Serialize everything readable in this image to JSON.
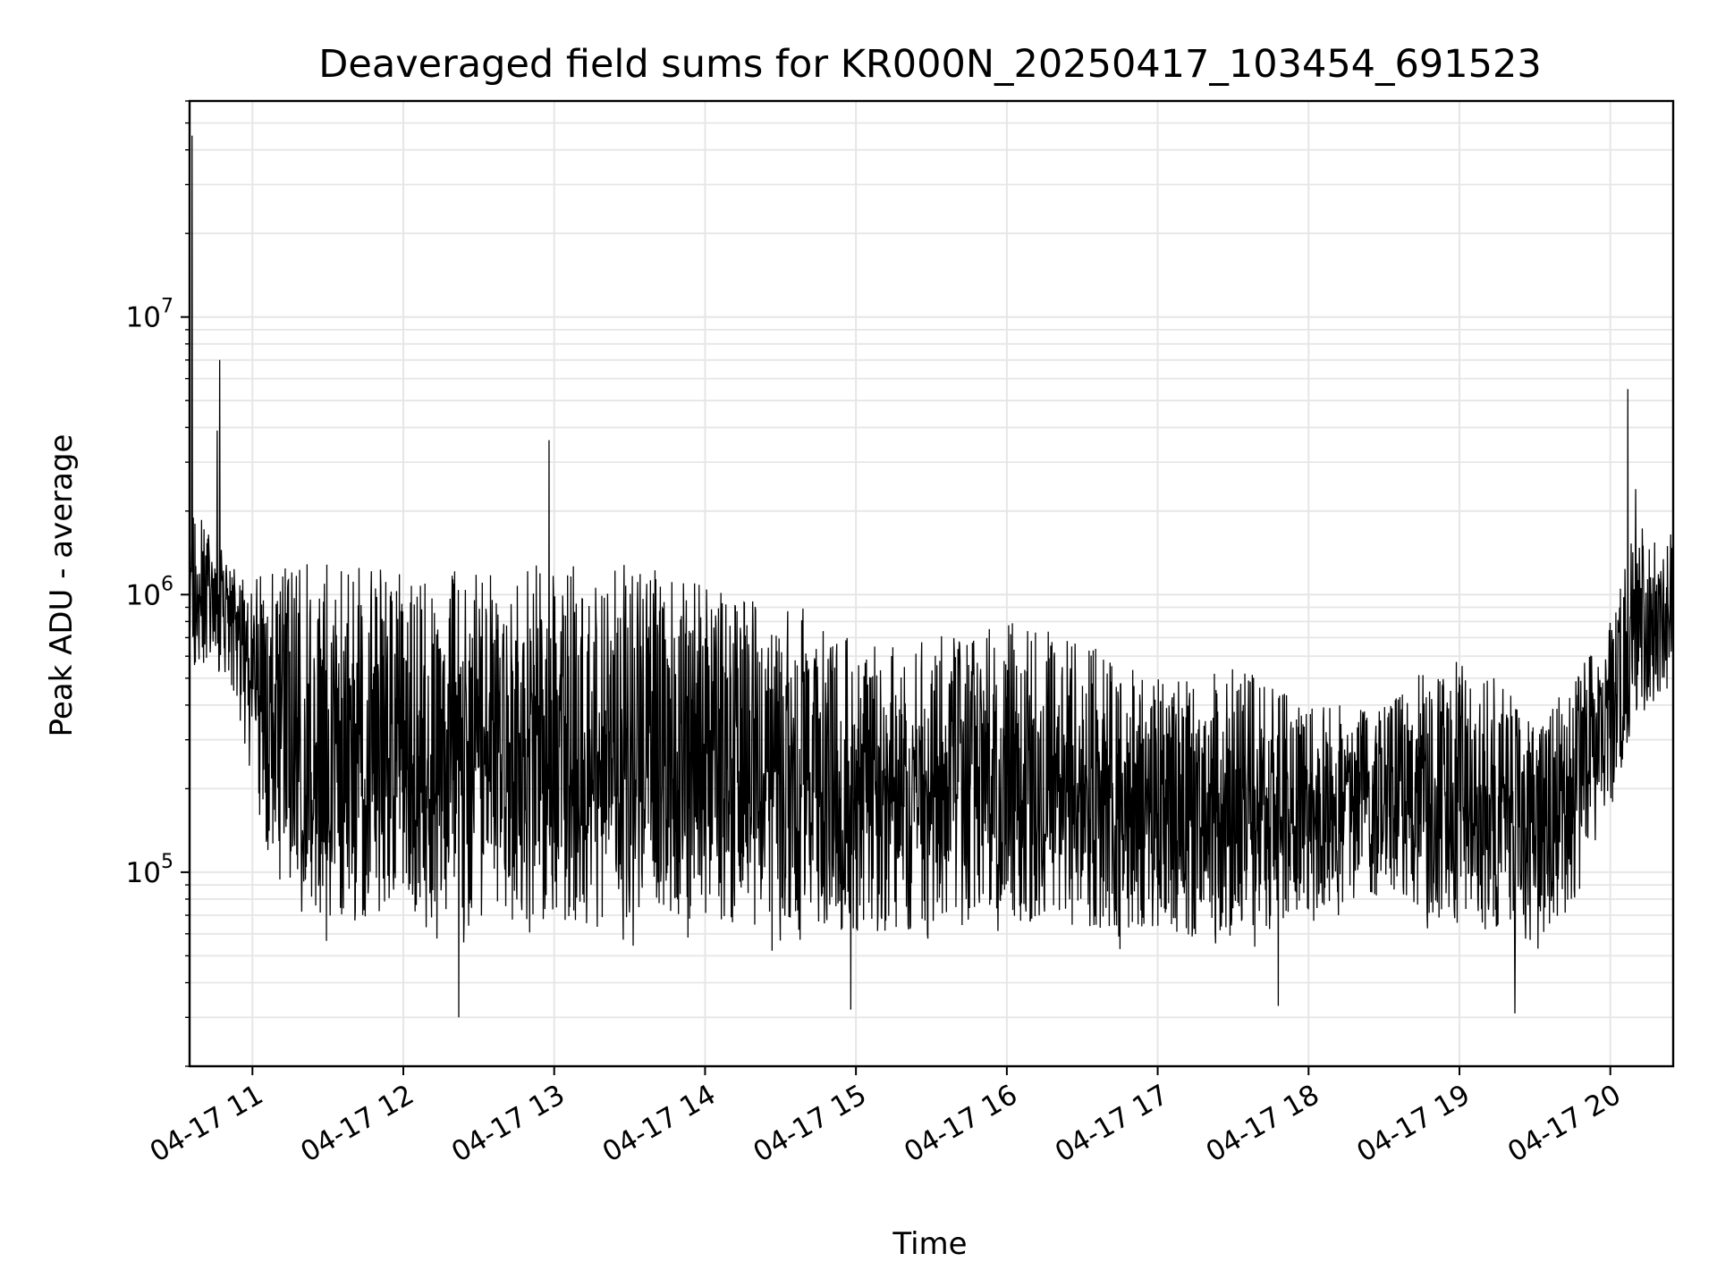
{
  "chart_data": {
    "type": "line",
    "title": "Deaveraged field sums for KR000N_20250417_103454_691523",
    "xlabel": "Time",
    "ylabel": "Peak ADU - average",
    "yscale": "log",
    "ylim": [
      20000,
      60000000
    ],
    "xlim": [
      "2025-04-17 10:35",
      "2025-04-17 20:25"
    ],
    "grid": true,
    "line_color": "#000000",
    "grid_color": "#e6e6e6",
    "x_tick_labels": [
      "04-17 11",
      "04-17 12",
      "04-17 13",
      "04-17 14",
      "04-17 15",
      "04-17 16",
      "04-17 17",
      "04-17 18",
      "04-17 19",
      "04-17 20"
    ],
    "x_tick_times": [
      "2025-04-17 11:00",
      "2025-04-17 12:00",
      "2025-04-17 13:00",
      "2025-04-17 14:00",
      "2025-04-17 15:00",
      "2025-04-17 16:00",
      "2025-04-17 17:00",
      "2025-04-17 18:00",
      "2025-04-17 19:00",
      "2025-04-17 20:00"
    ],
    "y_ticks": [
      {
        "value": 100000,
        "base": "10",
        "exp": "5"
      },
      {
        "value": 1000000,
        "base": "10",
        "exp": "6"
      },
      {
        "value": 10000000,
        "base": "10",
        "exp": "7"
      }
    ],
    "envelope": [
      {
        "t": "2025-04-17 10:35",
        "low": 400000,
        "high": 2000000
      },
      {
        "t": "2025-04-17 10:45",
        "low": 500000,
        "high": 1800000
      },
      {
        "t": "2025-04-17 10:55",
        "low": 300000,
        "high": 1200000
      },
      {
        "t": "2025-04-17 11:05",
        "low": 100000,
        "high": 1200000
      },
      {
        "t": "2025-04-17 11:15",
        "low": 55000,
        "high": 1300000
      },
      {
        "t": "2025-04-17 11:30",
        "low": 50000,
        "high": 1300000
      },
      {
        "t": "2025-04-17 12:00",
        "low": 50000,
        "high": 1250000
      },
      {
        "t": "2025-04-17 12:30",
        "low": 48000,
        "high": 1200000
      },
      {
        "t": "2025-04-17 13:00",
        "low": 48000,
        "high": 1300000
      },
      {
        "t": "2025-04-17 13:30",
        "low": 48000,
        "high": 1300000
      },
      {
        "t": "2025-04-17 14:00",
        "low": 50000,
        "high": 1100000
      },
      {
        "t": "2025-04-17 14:30",
        "low": 45000,
        "high": 1000000
      },
      {
        "t": "2025-04-17 15:00",
        "low": 45000,
        "high": 700000
      },
      {
        "t": "2025-04-17 15:30",
        "low": 48000,
        "high": 700000
      },
      {
        "t": "2025-04-17 16:00",
        "low": 50000,
        "high": 800000
      },
      {
        "t": "2025-04-17 16:30",
        "low": 48000,
        "high": 700000
      },
      {
        "t": "2025-04-17 17:00",
        "low": 50000,
        "high": 500000
      },
      {
        "t": "2025-04-17 17:30",
        "low": 42000,
        "high": 600000
      },
      {
        "t": "2025-04-17 18:00",
        "low": 60000,
        "high": 400000
      },
      {
        "t": "2025-04-17 18:30",
        "low": 70000,
        "high": 400000
      },
      {
        "t": "2025-04-17 19:00",
        "low": 50000,
        "high": 700000
      },
      {
        "t": "2025-04-17 19:30",
        "low": 45000,
        "high": 350000
      },
      {
        "t": "2025-04-17 19:45",
        "low": 60000,
        "high": 500000
      },
      {
        "t": "2025-04-17 20:00",
        "low": 150000,
        "high": 800000
      },
      {
        "t": "2025-04-17 20:10",
        "low": 300000,
        "high": 1800000
      },
      {
        "t": "2025-04-17 20:25",
        "low": 400000,
        "high": 1700000
      }
    ],
    "spikes": [
      {
        "t": "2025-04-17 10:36",
        "value": 45000000
      },
      {
        "t": "2025-04-17 10:47",
        "value": 7000000
      },
      {
        "t": "2025-04-17 10:46",
        "value": 3900000
      },
      {
        "t": "2025-04-17 12:58",
        "value": 3600000
      },
      {
        "t": "2025-04-17 20:07",
        "value": 5500000
      },
      {
        "t": "2025-04-17 20:10",
        "value": 2400000
      },
      {
        "t": "2025-04-17 12:22",
        "value": 30000
      },
      {
        "t": "2025-04-17 14:58",
        "value": 32000
      },
      {
        "t": "2025-04-17 19:22",
        "value": 31000
      },
      {
        "t": "2025-04-17 17:48",
        "value": 33000
      }
    ]
  }
}
